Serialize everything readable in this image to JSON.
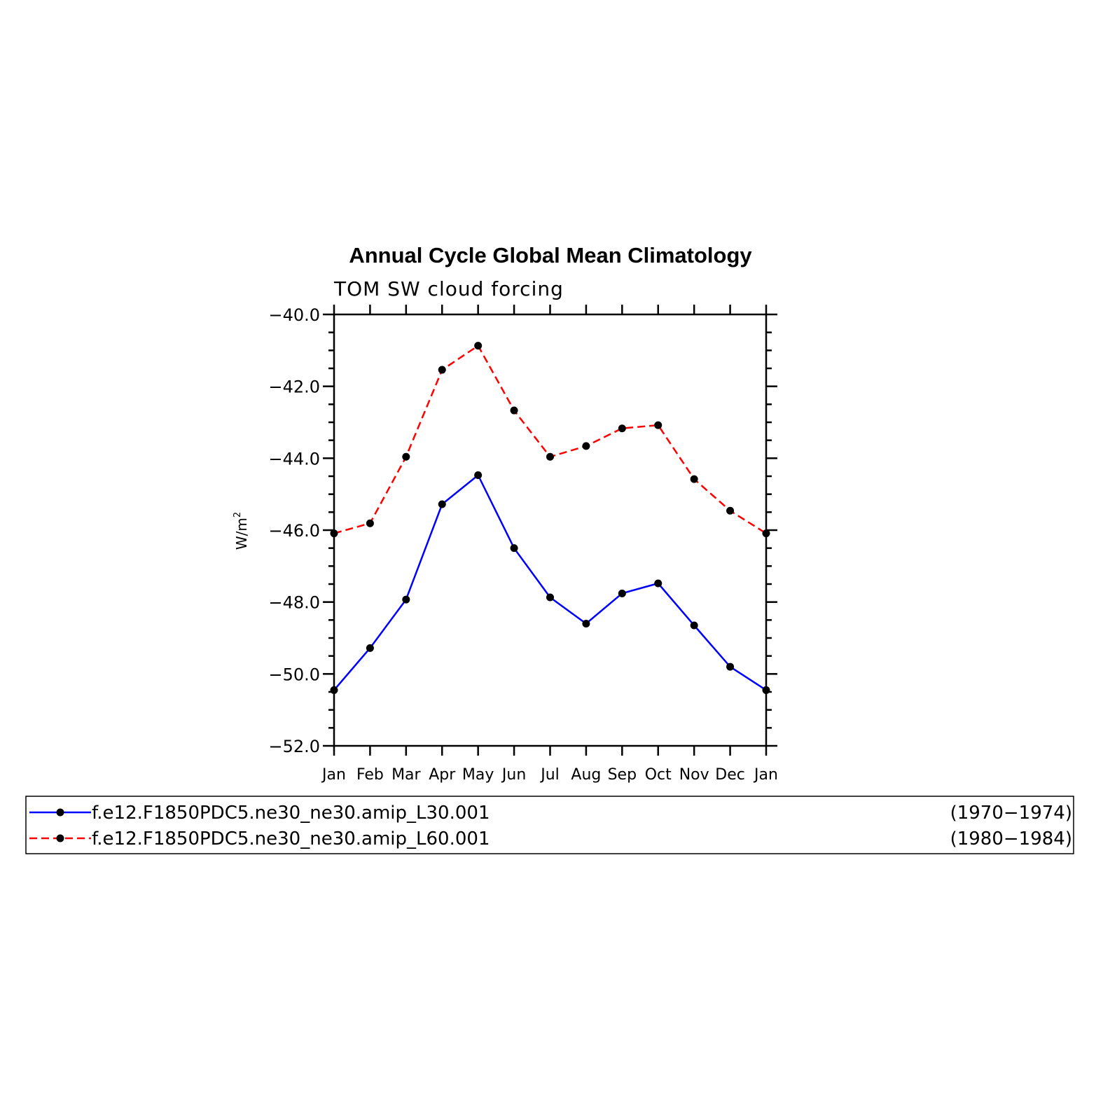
{
  "chart_data": {
    "type": "line",
    "title": "Annual Cycle Global Mean Climatology",
    "subtitle": "TOM SW cloud forcing",
    "ylabel_base": "W/m",
    "ylabel_sup": "2",
    "categories": [
      "Jan",
      "Feb",
      "Mar",
      "Apr",
      "May",
      "Jun",
      "Jul",
      "Aug",
      "Sep",
      "Oct",
      "Nov",
      "Dec",
      "Jan"
    ],
    "ylim": [
      -52.0,
      -40.0
    ],
    "yticks": [
      -52.0,
      -50.0,
      -48.0,
      -46.0,
      -44.0,
      -42.0,
      -40.0
    ],
    "ytick_labels": [
      "−52.0",
      "−50.0",
      "−48.0",
      "−46.0",
      "−44.0",
      "−42.0",
      "−40.0"
    ],
    "series": [
      {
        "name": "f.e12.F1850PDC5.ne30_ne30.amip_L30.001",
        "period": "(1970−1974)",
        "color": "#0000ff",
        "dash": "solid",
        "values": [
          -50.45,
          -49.28,
          -47.93,
          -45.28,
          -44.47,
          -46.5,
          -47.87,
          -48.6,
          -47.76,
          -47.48,
          -48.65,
          -49.8,
          -50.45
        ]
      },
      {
        "name": "f.e12.F1850PDC5.ne30_ne30.amip_L60.001",
        "period": "(1980−1984)",
        "color": "#ff0000",
        "dash": "dashed",
        "values": [
          -46.09,
          -45.81,
          -43.96,
          -41.54,
          -40.87,
          -42.67,
          -43.96,
          -43.66,
          -43.17,
          -43.08,
          -44.58,
          -45.46,
          -46.09
        ]
      }
    ],
    "grid": false,
    "legend": "bottom"
  }
}
